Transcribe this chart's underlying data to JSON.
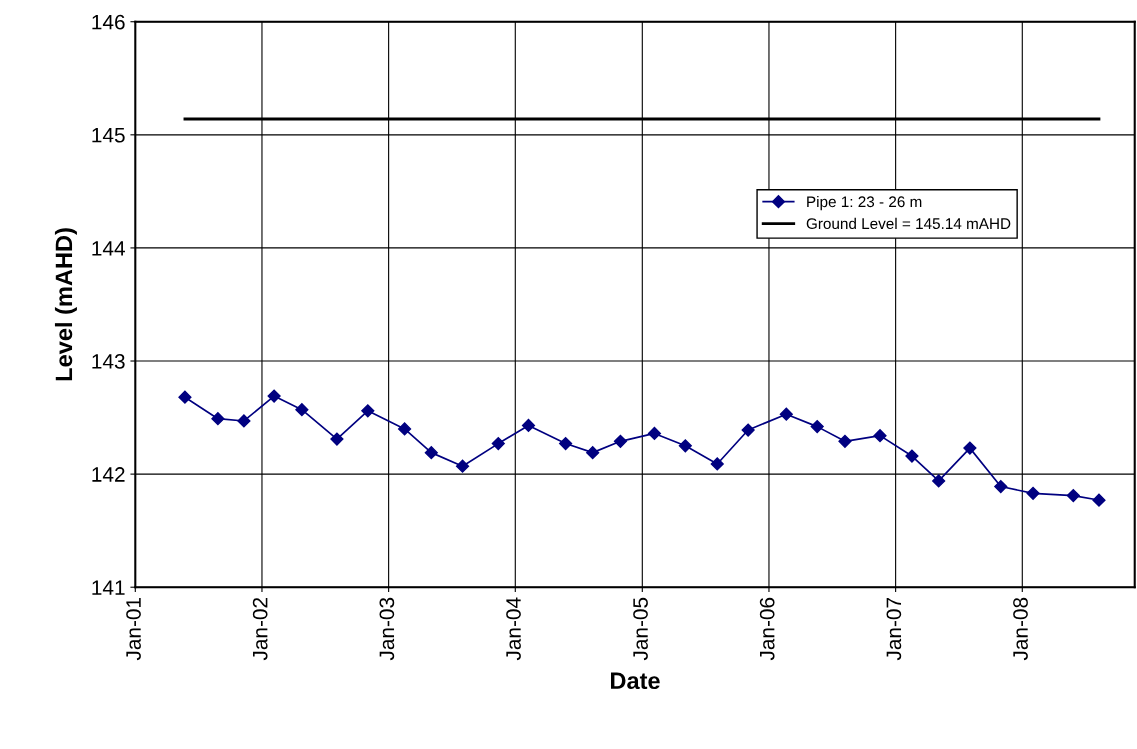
{
  "chart_data": {
    "type": "line",
    "xlabel": "Date",
    "ylabel": "Level (mAHD)",
    "xlim": [
      "2001-01-01",
      "2008-11-20"
    ],
    "ylim": [
      141,
      146
    ],
    "yticks": [
      141,
      142,
      143,
      144,
      145,
      146
    ],
    "xticks": [
      {
        "value": "2001-01-01",
        "label": "Jan-01"
      },
      {
        "value": "2002-01-01",
        "label": "Jan-02"
      },
      {
        "value": "2003-01-01",
        "label": "Jan-03"
      },
      {
        "value": "2004-01-01",
        "label": "Jan-04"
      },
      {
        "value": "2005-01-01",
        "label": "Jan-05"
      },
      {
        "value": "2006-01-01",
        "label": "Jan-06"
      },
      {
        "value": "2007-01-01",
        "label": "Jan-07"
      },
      {
        "value": "2008-01-01",
        "label": "Jan-08"
      }
    ],
    "grid": true,
    "legend": "right",
    "series": [
      {
        "name": "Pipe 1: 23 - 26 m",
        "color": "#000080",
        "marker": "diamond",
        "x": [
          "2001-05-24",
          "2001-08-27",
          "2001-11-10",
          "2002-02-05",
          "2002-04-26",
          "2002-08-05",
          "2002-11-02",
          "2003-02-16",
          "2003-05-04",
          "2003-08-02",
          "2003-11-13",
          "2004-02-08",
          "2004-05-25",
          "2004-08-11",
          "2004-10-30",
          "2005-02-05",
          "2005-05-05",
          "2005-08-05",
          "2005-11-02",
          "2006-02-20",
          "2006-05-20",
          "2006-08-08",
          "2006-11-17",
          "2007-02-17",
          "2007-05-05",
          "2007-08-03",
          "2007-10-31",
          "2008-02-01",
          "2008-05-27",
          "2008-08-09"
        ],
        "values": [
          142.68,
          142.49,
          142.47,
          142.69,
          142.57,
          142.31,
          142.56,
          142.4,
          142.19,
          142.07,
          142.27,
          142.43,
          142.27,
          142.19,
          142.29,
          142.36,
          142.25,
          142.09,
          142.39,
          142.53,
          142.42,
          142.29,
          142.34,
          142.16,
          141.94,
          142.23,
          141.89,
          141.83,
          141.81,
          141.77
        ]
      },
      {
        "name": "Ground Level = 145.14 mAHD",
        "color": "#000000",
        "marker": "none",
        "x": [
          "2001-05-24",
          "2008-08-09"
        ],
        "values": [
          145.14,
          145.14
        ]
      }
    ]
  }
}
